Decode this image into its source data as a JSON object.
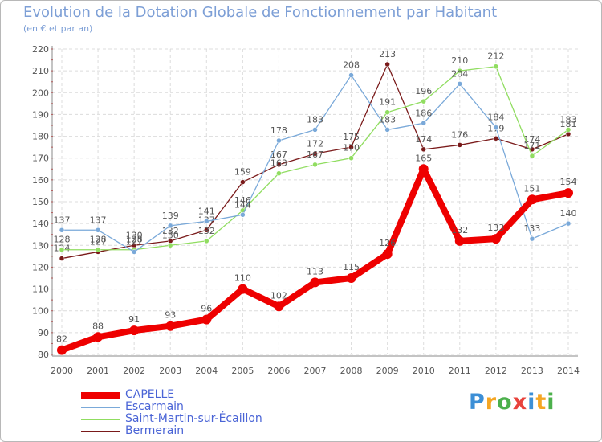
{
  "chart_data": {
    "type": "line",
    "title": "Evolution de la Dotation Globale de Fonctionnement par Habitant",
    "subtitle": "(en € et par an)",
    "x": [
      "2000",
      "2001",
      "2002",
      "2003",
      "2004",
      "2005",
      "2006",
      "2007",
      "2008",
      "2009",
      "2010",
      "2011",
      "2012",
      "2013",
      "2014"
    ],
    "ylim": [
      80,
      220
    ],
    "yticks": [
      80,
      90,
      100,
      110,
      120,
      130,
      140,
      150,
      160,
      170,
      180,
      190,
      200,
      210,
      220
    ],
    "grid": true,
    "series": [
      {
        "name": "CAPELLE",
        "color": "#ee0000",
        "values": [
          82,
          88,
          91,
          93,
          96,
          110,
          102,
          113,
          115,
          126,
          165,
          132,
          133,
          151,
          154
        ]
      },
      {
        "name": "Escarmain",
        "color": "#7aa9d9",
        "values": [
          137,
          137,
          127,
          139,
          141,
          144,
          178,
          183,
          208,
          183,
          186,
          204,
          184,
          133,
          140
        ]
      },
      {
        "name": "Saint-Martin-sur-Écaillon",
        "color": "#90dd60",
        "values": [
          128,
          128,
          128,
          130,
          132,
          146,
          163,
          167,
          170,
          191,
          196,
          210,
          212,
          171,
          183
        ]
      },
      {
        "name": "Bermerain",
        "color": "#7a1a1a",
        "values": [
          124,
          127,
          130,
          132,
          137,
          159,
          167,
          172,
          175,
          213,
          174,
          176,
          179,
          174,
          181
        ]
      }
    ]
  },
  "brand": {
    "name": "Proxiti",
    "letters": [
      "P",
      "r",
      "o",
      "x",
      "i",
      "t",
      "i"
    ],
    "colors": [
      "#3c8fd6",
      "#f5a623",
      "#4cb04c",
      "#e8433c",
      "#3c8fd6",
      "#f5a623",
      "#4cb04c"
    ]
  }
}
